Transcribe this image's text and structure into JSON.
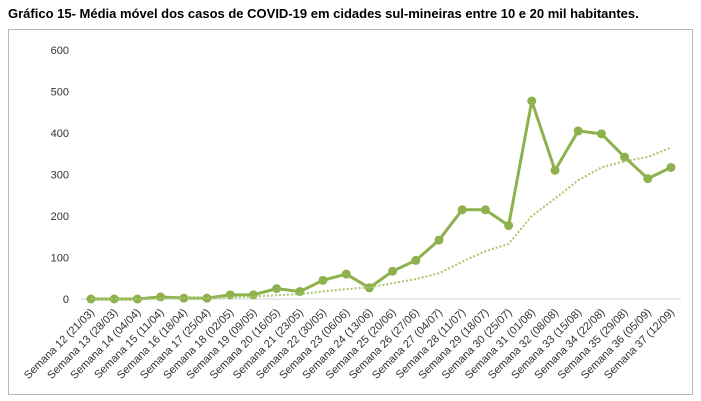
{
  "title": "Gráfico 15- Média móvel dos casos de COVID-19 em cidades sul-mineiras entre 10 e 20 mil habitantes.",
  "chart_data": {
    "type": "line",
    "categories": [
      "Semana 12 (21/03)",
      "Semana 13 (28/03)",
      "Semana 14 (04/04)",
      "Semana 15 (11/04)",
      "Semana 16 (18/04)",
      "Semana 17 (25/04)",
      "Semana 18 (02/05)",
      "Semana 19 (09/05)",
      "Semana 20 (16/05)",
      "Semana 21 (23/05)",
      "Semana 22 (30/05)",
      "Semana 23 (06/06)",
      "Semana 24 (13/06)",
      "Semana 25 (20/06)",
      "Semana 26 (27/06)",
      "Semana 27 (04/07)",
      "Semana 28 (11/07)",
      "Semana 29 (18/07)",
      "Semana 30 (25/07)",
      "Semana 31 (01/08)",
      "Semana 32 (08/08)",
      "Semana 33 (15/08)",
      "Semana 34 (22/08)",
      "Semana 35 (29/08)",
      "Semana 36 (05/09)",
      "Semana 37 (12/09)"
    ],
    "series": [
      {
        "style": "solid-with-markers",
        "color": "#8db14d",
        "values": [
          0,
          0,
          0,
          5,
          2,
          2,
          10,
          10,
          25,
          18,
          45,
          60,
          27,
          67,
          93,
          142,
          215,
          215,
          177,
          477,
          310,
          405,
          398,
          342,
          290,
          317
        ]
      },
      {
        "style": "dotted-trendline",
        "color": "#a9c56a",
        "values": [
          0,
          0,
          0,
          1,
          2,
          2,
          4,
          6,
          9,
          12,
          18,
          24,
          28,
          38,
          48,
          62,
          90,
          115,
          133,
          200,
          242,
          286,
          317,
          332,
          342,
          365
        ]
      }
    ],
    "ylim": [
      0,
      600
    ],
    "yticks": [
      0,
      100,
      200,
      300,
      400,
      500,
      600
    ],
    "grid": false,
    "legend": "none"
  }
}
